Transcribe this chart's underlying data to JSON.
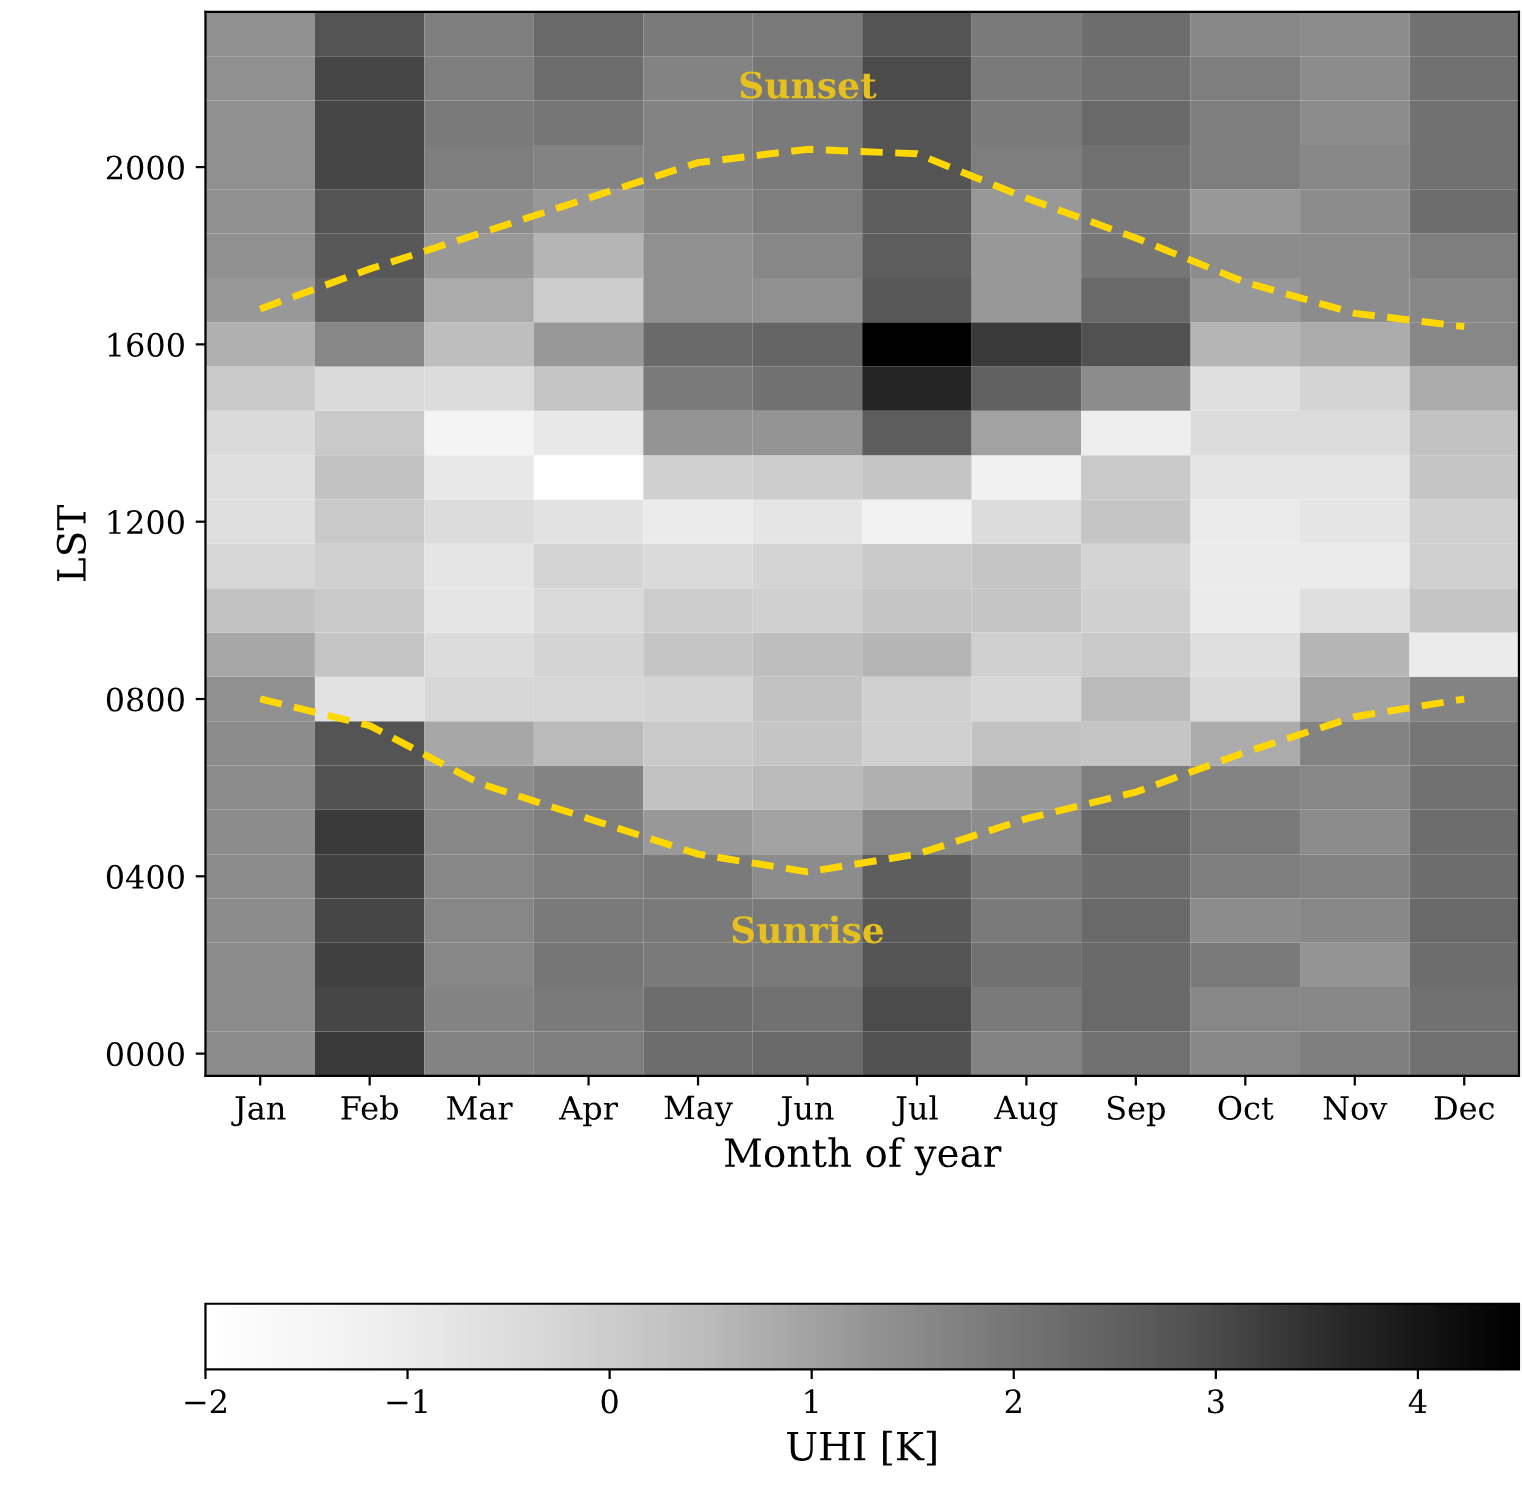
{
  "chart_data": {
    "type": "heatmap",
    "xlabel": "Month of year",
    "ylabel": "LST",
    "clabel": "UHI [K]",
    "categories": [
      "Jan",
      "Feb",
      "Mar",
      "Apr",
      "May",
      "Jun",
      "Jul",
      "Aug",
      "Sep",
      "Oct",
      "Nov",
      "Dec"
    ],
    "ylim": [
      -50,
      2350
    ],
    "yticks": [
      {
        "value": 0,
        "label": "0000"
      },
      {
        "value": 400,
        "label": "0400"
      },
      {
        "value": 800,
        "label": "0800"
      },
      {
        "value": 1200,
        "label": "1200"
      },
      {
        "value": 1600,
        "label": "1600"
      },
      {
        "value": 2000,
        "label": "2000"
      }
    ],
    "clim": [
      -2,
      4.5
    ],
    "cticks": [
      {
        "value": -2,
        "label": "−2"
      },
      {
        "value": -1,
        "label": "−1"
      },
      0,
      1,
      2,
      3,
      4
    ],
    "cells": [
      [
        1.4,
        2.8,
        1.8,
        2.3,
        1.9,
        1.9,
        2.8,
        1.9,
        2.2,
        1.6,
        1.5,
        2.1
      ],
      [
        1.4,
        3.1,
        1.8,
        2.2,
        1.7,
        2.0,
        3.0,
        1.9,
        2.1,
        1.8,
        1.5,
        2.1
      ],
      [
        1.4,
        3.1,
        1.9,
        2.0,
        1.7,
        1.9,
        2.8,
        1.9,
        2.3,
        1.8,
        1.5,
        2.1
      ],
      [
        1.4,
        3.1,
        1.8,
        1.7,
        1.7,
        1.9,
        2.8,
        1.8,
        2.1,
        1.8,
        1.6,
        2.1
      ],
      [
        1.4,
        2.8,
        1.5,
        1.2,
        1.6,
        1.8,
        2.6,
        1.2,
        1.9,
        1.2,
        1.5,
        2.2
      ],
      [
        1.4,
        2.7,
        1.2,
        0.6,
        1.4,
        1.6,
        2.6,
        1.2,
        2.0,
        1.5,
        1.5,
        1.8
      ],
      [
        1.2,
        2.5,
        0.8,
        0.0,
        1.4,
        1.4,
        2.7,
        1.2,
        2.3,
        1.2,
        1.5,
        1.6
      ],
      [
        0.7,
        1.6,
        0.4,
        1.2,
        2.3,
        2.4,
        4.5,
        3.3,
        2.9,
        0.6,
        0.8,
        1.6
      ],
      [
        0.1,
        -0.4,
        -0.5,
        0.2,
        1.9,
        2.1,
        3.7,
        2.5,
        1.5,
        -0.6,
        -0.2,
        0.8
      ],
      [
        -0.4,
        0.1,
        -1.4,
        -0.9,
        1.3,
        1.3,
        2.6,
        1.0,
        -1.1,
        -0.5,
        -0.5,
        0.3
      ],
      [
        -0.6,
        0.3,
        -0.9,
        -2.0,
        -0.1,
        0.0,
        0.2,
        -1.2,
        0.1,
        -0.8,
        -0.8,
        0.2
      ],
      [
        -0.6,
        0.1,
        -0.5,
        -0.7,
        -1.0,
        -0.8,
        -1.3,
        -0.5,
        0.2,
        -1.0,
        -0.8,
        -0.1
      ],
      [
        -0.3,
        -0.1,
        -0.8,
        -0.2,
        -0.4,
        -0.2,
        0.1,
        0.2,
        -0.2,
        -1.0,
        -1.0,
        -0.1
      ],
      [
        0.3,
        0.1,
        -0.8,
        -0.4,
        0.0,
        -0.1,
        0.2,
        0.2,
        -0.1,
        -1.0,
        -0.6,
        0.2
      ],
      [
        0.9,
        0.2,
        -0.5,
        -0.2,
        0.2,
        0.4,
        0.6,
        -0.1,
        0.1,
        -0.6,
        0.6,
        -1.0
      ],
      [
        1.4,
        -0.7,
        -0.3,
        -0.3,
        -0.2,
        0.3,
        -0.1,
        -0.3,
        0.5,
        -0.4,
        1.0,
        1.7
      ],
      [
        1.5,
        2.8,
        0.9,
        0.5,
        0.1,
        0.2,
        -0.1,
        0.3,
        0.2,
        0.8,
        1.7,
        2.0
      ],
      [
        1.5,
        2.9,
        1.5,
        1.7,
        0.3,
        0.5,
        0.7,
        1.2,
        1.8,
        1.7,
        1.6,
        2.1
      ],
      [
        1.5,
        3.3,
        1.6,
        1.8,
        1.2,
        1.0,
        1.6,
        1.5,
        2.3,
        1.9,
        1.5,
        2.2
      ],
      [
        1.5,
        3.2,
        1.6,
        1.8,
        1.9,
        1.5,
        2.6,
        1.9,
        2.2,
        1.8,
        1.7,
        2.2
      ],
      [
        1.5,
        3.1,
        1.6,
        1.9,
        1.9,
        1.9,
        2.7,
        1.9,
        2.3,
        1.5,
        1.6,
        2.3
      ],
      [
        1.5,
        3.2,
        1.6,
        2.0,
        1.9,
        1.9,
        2.8,
        2.1,
        2.3,
        1.9,
        1.3,
        2.2
      ],
      [
        1.5,
        3.1,
        1.7,
        1.9,
        2.2,
        2.1,
        3.0,
        1.9,
        2.3,
        1.6,
        1.6,
        2.1
      ],
      [
        1.5,
        3.3,
        1.7,
        1.8,
        2.2,
        2.3,
        2.9,
        1.7,
        2.1,
        1.6,
        1.8,
        2.1
      ]
    ],
    "series": [
      {
        "type": "line",
        "name": "Sunset",
        "color": "#ffd700",
        "line_style": "dashed",
        "values": [
          1680,
          1770,
          1850,
          1930,
          2010,
          2040,
          2030,
          1930,
          1840,
          1740,
          1670,
          1640
        ]
      },
      {
        "type": "line",
        "name": "Sunrise",
        "color": "#ffd700",
        "line_style": "dashed",
        "values": [
          800,
          740,
          610,
          530,
          450,
          410,
          450,
          530,
          590,
          680,
          760,
          800
        ]
      }
    ]
  }
}
